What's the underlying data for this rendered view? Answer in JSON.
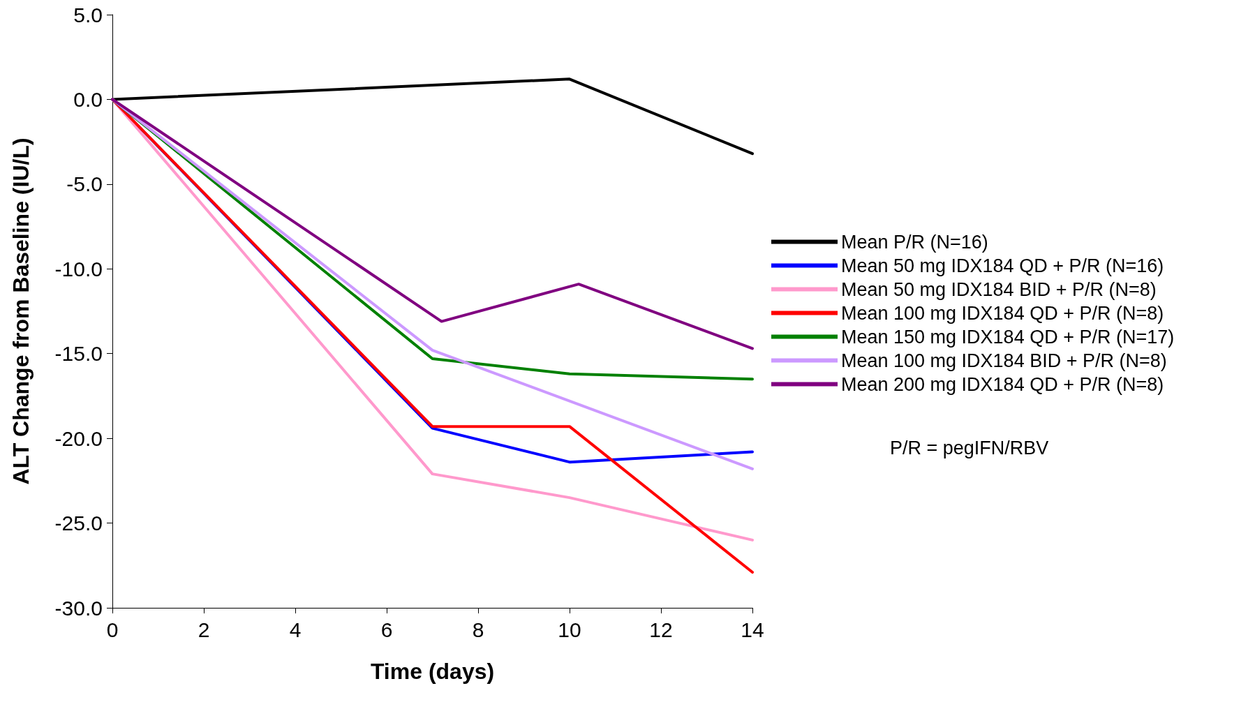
{
  "chart_data": {
    "type": "line",
    "xlabel": "Time (days)",
    "ylabel": "ALT Change from Baseline (IU/L)",
    "annotations": [
      "P/R = pegIFN/RBV"
    ],
    "xlim": [
      0,
      14
    ],
    "xticks": [
      0,
      2,
      4,
      6,
      8,
      10,
      12,
      14
    ],
    "ylim": [
      -30,
      5
    ],
    "yticks": [
      {
        "value": -30,
        "label": "-30.0"
      },
      {
        "value": -25,
        "label": "-25.0"
      },
      {
        "value": -20,
        "label": "-20.0"
      },
      {
        "value": -15,
        "label": "-15.0"
      },
      {
        "value": -10,
        "label": "-10.0"
      },
      {
        "value": -5,
        "label": "-5.0"
      },
      {
        "value": 0,
        "label": "0.0"
      },
      {
        "value": 5,
        "label": "5.0"
      }
    ],
    "grid": false,
    "legend": "right",
    "marker": "none",
    "line_style": "solid",
    "series": [
      {
        "name": "Mean P/R (N=16)",
        "color": "#000000",
        "x": [
          0,
          10,
          14
        ],
        "values": [
          0,
          1.2,
          -3.2
        ]
      },
      {
        "name": "Mean 50 mg IDX184 QD + P/R (N=16)",
        "color": "#0000ff",
        "x": [
          0,
          7,
          10,
          14
        ],
        "values": [
          0,
          -19.4,
          -21.4,
          -20.8
        ]
      },
      {
        "name": "Mean 50 mg IDX184 BID + P/R (N=8)",
        "color": "#ff99cc",
        "x": [
          0,
          7,
          10,
          14
        ],
        "values": [
          0,
          -22.1,
          -23.5,
          -26.0
        ]
      },
      {
        "name": "Mean 100 mg IDX184 QD + P/R (N=8)",
        "color": "#ff0000",
        "x": [
          0,
          7,
          10,
          14
        ],
        "values": [
          0,
          -19.3,
          -19.3,
          -27.9
        ]
      },
      {
        "name": "Mean 150 mg IDX184 QD + P/R (N=17)",
        "color": "#008000",
        "x": [
          0,
          7,
          10,
          14
        ],
        "values": [
          0,
          -15.3,
          -16.2,
          -16.5
        ]
      },
      {
        "name": "Mean 100 mg IDX184 BID + P/R (N=8)",
        "color": "#cc99ff",
        "x": [
          0,
          7,
          14
        ],
        "values": [
          0,
          -14.8,
          -21.8
        ]
      },
      {
        "name": "Mean 200 mg IDX184 QD + P/R (N=8)",
        "color": "#800080",
        "x": [
          0,
          7.2,
          10.2,
          14
        ],
        "values": [
          0,
          -13.1,
          -10.9,
          -14.7
        ]
      }
    ]
  }
}
